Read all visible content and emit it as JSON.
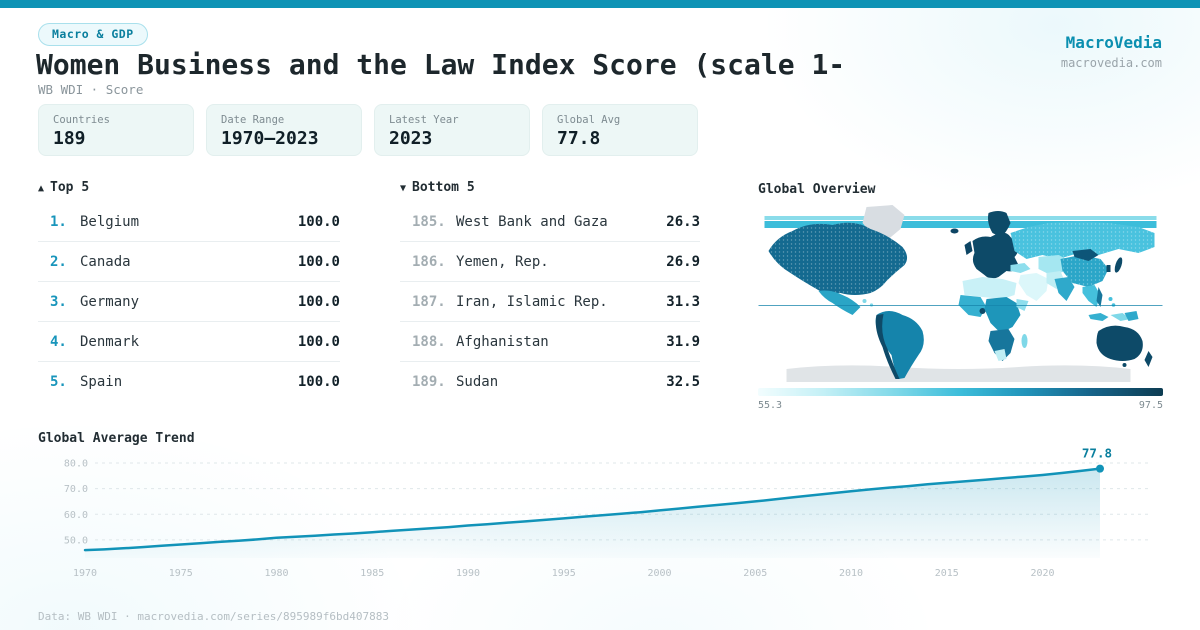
{
  "brand": {
    "name": "MacroVedia",
    "domain": "macrovedia.com"
  },
  "header": {
    "category_badge": "Macro & GDP",
    "title": "Women Business and the Law Index Score (scale 1-",
    "subtitle": "WB WDI · Score"
  },
  "stats": [
    {
      "label": "Countries",
      "value": "189"
    },
    {
      "label": "Date Range",
      "value": "1970—2023"
    },
    {
      "label": "Latest Year",
      "value": "2023"
    },
    {
      "label": "Global Avg",
      "value": "77.8"
    }
  ],
  "top5": {
    "arrow": "▲",
    "title": "Top 5",
    "rows": [
      {
        "rank": "1.",
        "name": "Belgium",
        "value": "100.0"
      },
      {
        "rank": "2.",
        "name": "Canada",
        "value": "100.0"
      },
      {
        "rank": "3.",
        "name": "Germany",
        "value": "100.0"
      },
      {
        "rank": "4.",
        "name": "Denmark",
        "value": "100.0"
      },
      {
        "rank": "5.",
        "name": "Spain",
        "value": "100.0"
      }
    ]
  },
  "bottom5": {
    "arrow": "▼",
    "title": "Bottom 5",
    "rows": [
      {
        "rank": "185.",
        "name": "West Bank and Gaza",
        "value": "26.3"
      },
      {
        "rank": "186.",
        "name": "Yemen, Rep.",
        "value": "26.9"
      },
      {
        "rank": "187.",
        "name": "Iran, Islamic Rep.",
        "value": "31.3"
      },
      {
        "rank": "188.",
        "name": "Afghanistan",
        "value": "31.9"
      },
      {
        "rank": "189.",
        "name": "Sudan",
        "value": "32.5"
      }
    ]
  },
  "map": {
    "title": "Global Overview",
    "legend_min": "55.3",
    "legend_max": "97.5"
  },
  "trend": {
    "title": "Global Average Trend"
  },
  "chart_data": {
    "type": "area",
    "title": "Global Average Trend",
    "xlabel": "",
    "ylabel": "",
    "ylim": [
      44,
      82
    ],
    "y_ticks": [
      80,
      70,
      60,
      50
    ],
    "x_label_ticks": [
      1970,
      1975,
      1980,
      1985,
      1990,
      1995,
      2000,
      2005,
      2010,
      2015,
      2020
    ],
    "x": [
      1970,
      1971,
      1972,
      1973,
      1974,
      1975,
      1976,
      1977,
      1978,
      1979,
      1980,
      1981,
      1982,
      1983,
      1984,
      1985,
      1986,
      1987,
      1988,
      1989,
      1990,
      1991,
      1992,
      1993,
      1994,
      1995,
      1996,
      1997,
      1998,
      1999,
      2000,
      2001,
      2002,
      2003,
      2004,
      2005,
      2006,
      2007,
      2008,
      2009,
      2010,
      2011,
      2012,
      2013,
      2014,
      2015,
      2016,
      2017,
      2018,
      2019,
      2020,
      2021,
      2022,
      2023
    ],
    "values": [
      46.0,
      46.3,
      46.7,
      47.2,
      47.7,
      48.2,
      48.7,
      49.2,
      49.7,
      50.2,
      50.8,
      51.2,
      51.6,
      52.1,
      52.5,
      53.0,
      53.5,
      54.0,
      54.5,
      55.0,
      55.6,
      56.1,
      56.7,
      57.2,
      57.8,
      58.4,
      59.0,
      59.6,
      60.2,
      60.8,
      61.5,
      62.2,
      62.9,
      63.6,
      64.3,
      65.0,
      65.8,
      66.6,
      67.4,
      68.2,
      69.0,
      69.7,
      70.4,
      71.0,
      71.7,
      72.3,
      72.9,
      73.5,
      74.1,
      74.7,
      75.3,
      76.1,
      76.9,
      77.8
    ],
    "end_label": "77.8",
    "line_color": "#1193b8",
    "grid": true,
    "legend_position": "none"
  },
  "footer": {
    "text": "Data: WB WDI · macrovedia.com/series/895989f6bd407883"
  },
  "colors": {
    "accent": "#0e93b5",
    "accent_text": "#0a8fb0",
    "map_scale_low": "#f2fdfe",
    "map_scale_high": "#0d3c52"
  }
}
